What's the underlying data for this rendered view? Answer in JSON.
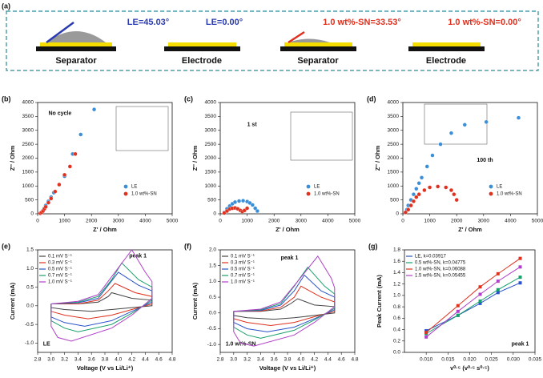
{
  "diagram": {
    "label": "(a)",
    "items": [
      {
        "angle": "LE=45.03°",
        "caption": "Separator"
      },
      {
        "angle": "LE=0.00°",
        "caption": "Electrode"
      },
      {
        "angle": "1.0 wt%-SN=33.53°",
        "caption": "Separator"
      },
      {
        "angle": "1.0 wt%-SN=0.00°",
        "caption": "Electrode"
      }
    ]
  },
  "chart_data": [
    {
      "type": "scatter",
      "label": "(b)",
      "annotations": [
        "No cycle"
      ],
      "xlabel": "Z' / Ohm",
      "ylabel": "Z'' / Ohm",
      "xlim": [
        0,
        5000
      ],
      "ylim": [
        0,
        4000
      ],
      "xticks": [
        0,
        1000,
        2000,
        3000,
        4000,
        5000
      ],
      "yticks": [
        0,
        500,
        1000,
        1500,
        2000,
        2500,
        3000,
        3500,
        4000
      ],
      "legend": "lower right",
      "series": [
        {
          "name": "LE",
          "color": "#3a8fd8",
          "x": [
            100,
            150,
            200,
            250,
            300,
            400,
            500,
            600,
            800,
            1000,
            1300,
            1600,
            2100
          ],
          "values": [
            20,
            60,
            120,
            200,
            300,
            450,
            600,
            760,
            1050,
            1350,
            2150,
            2850,
            3750
          ]
        },
        {
          "name": "1.0 wt%-SN",
          "color": "#e0301e",
          "x": [
            100,
            150,
            200,
            250,
            300,
            400,
            500,
            650,
            800,
            1000,
            1200,
            1400
          ],
          "values": [
            20,
            50,
            100,
            180,
            250,
            400,
            550,
            800,
            1050,
            1400,
            1700,
            2150
          ]
        }
      ]
    },
    {
      "type": "scatter",
      "label": "(c)",
      "annotations": [
        "1 st"
      ],
      "xlabel": "Z' / Ohm",
      "ylabel": "Z'' / Ohm",
      "xlim": [
        0,
        5000
      ],
      "ylim": [
        0,
        4000
      ],
      "xticks": [
        0,
        1000,
        2000,
        3000,
        4000,
        5000
      ],
      "yticks": [
        0,
        500,
        1000,
        1500,
        2000,
        2500,
        3000,
        3500,
        4000
      ],
      "legend": "lower right",
      "series": [
        {
          "name": "LE",
          "color": "#3a8fd8",
          "x": [
            150,
            250,
            350,
            450,
            550,
            700,
            850,
            1000,
            1100,
            1200,
            1300,
            1380
          ],
          "values": [
            50,
            180,
            280,
            360,
            420,
            460,
            470,
            440,
            390,
            320,
            200,
            100
          ]
        },
        {
          "name": "1.0 wt%-SN",
          "color": "#e0301e",
          "x": [
            150,
            250,
            350,
            450,
            550,
            650,
            750,
            820,
            900,
            1000
          ],
          "values": [
            30,
            100,
            170,
            200,
            210,
            180,
            120,
            80,
            120,
            200
          ]
        }
      ]
    },
    {
      "type": "scatter",
      "label": "(d)",
      "annotations": [
        "100 th"
      ],
      "xlabel": "Z' / Ohm",
      "ylabel": "Z'' / Ohm",
      "xlim": [
        0,
        5000
      ],
      "ylim": [
        0,
        4000
      ],
      "xticks": [
        0,
        1000,
        2000,
        3000,
        4000,
        5000
      ],
      "yticks": [
        0,
        500,
        1000,
        1500,
        2000,
        2500,
        3000,
        3500,
        4000
      ],
      "legend": "lower right",
      "series": [
        {
          "name": "LE",
          "color": "#3a8fd8",
          "x": [
            100,
            150,
            200,
            300,
            400,
            500,
            600,
            700,
            900,
            1100,
            1400,
            1800,
            2300,
            3100,
            4300
          ],
          "values": [
            50,
            150,
            300,
            500,
            700,
            900,
            1100,
            1300,
            1700,
            2100,
            2500,
            2900,
            3200,
            3300,
            3450
          ]
        },
        {
          "name": "1.0 wt%-SN",
          "color": "#e0301e",
          "x": [
            100,
            200,
            300,
            400,
            500,
            600,
            800,
            1000,
            1300,
            1600,
            1800,
            1900,
            2000
          ],
          "values": [
            50,
            150,
            300,
            450,
            600,
            700,
            850,
            950,
            980,
            950,
            850,
            700,
            500
          ]
        }
      ]
    },
    {
      "type": "line",
      "label": "(e)",
      "annotations": [
        "peak 1",
        "LE"
      ],
      "xlabel": "Voltage (V vs Li/Li⁺)",
      "ylabel": "Current (mA)",
      "xlim": [
        2.8,
        4.8
      ],
      "ylim": [
        -1.25,
        1.5
      ],
      "xticks": [
        2.8,
        {
          "value": 3,
          "label": "3.0"
        },
        3.2,
        3.4,
        3.6,
        3.8,
        {
          "value": 4,
          "label": "4.0"
        },
        4.2,
        4.4,
        4.6,
        4.8
      ],
      "yticks": [
        {
          "value": -1,
          "label": "-1.0"
        },
        -0.5,
        {
          "value": 0,
          "label": "0.0"
        },
        0.5,
        {
          "value": 1,
          "label": "1.0"
        },
        1.5
      ],
      "legend": "upper left",
      "series": [
        {
          "name": "0.1 mV S⁻¹",
          "color": "#444444",
          "x": [
            3.0,
            3.4,
            3.7,
            3.85,
            3.9,
            4.2,
            4.5,
            4.5,
            4.2,
            3.9,
            3.6,
            3.2,
            3.0,
            3.0
          ],
          "values": [
            0.05,
            0.05,
            0.1,
            0.25,
            0.35,
            0.2,
            0.15,
            0.0,
            -0.05,
            -0.1,
            -0.15,
            -0.1,
            -0.05,
            0.05
          ]
        },
        {
          "name": "0.3 mV S⁻¹",
          "color": "#e0301e",
          "x": [
            3.0,
            3.4,
            3.7,
            3.85,
            3.95,
            4.25,
            4.5,
            4.5,
            4.2,
            3.9,
            3.55,
            3.2,
            3.0,
            3.0
          ],
          "values": [
            0.05,
            0.05,
            0.15,
            0.4,
            0.6,
            0.35,
            0.25,
            0.05,
            -0.1,
            -0.25,
            -0.35,
            -0.25,
            -0.15,
            0.05
          ]
        },
        {
          "name": "0.5 mV S⁻¹",
          "color": "#2a52c9",
          "x": [
            3.0,
            3.4,
            3.7,
            3.85,
            4.0,
            4.3,
            4.5,
            4.5,
            4.2,
            3.9,
            3.5,
            3.2,
            3.0,
            3.0
          ],
          "values": [
            0.05,
            0.08,
            0.2,
            0.55,
            0.9,
            0.55,
            0.4,
            0.1,
            -0.15,
            -0.4,
            -0.55,
            -0.45,
            -0.3,
            0.05
          ]
        },
        {
          "name": "0.7 mV S⁻¹",
          "color": "#17a06a",
          "x": [
            3.0,
            3.4,
            3.7,
            3.9,
            4.05,
            4.3,
            4.5,
            4.5,
            4.2,
            3.9,
            3.4,
            3.2,
            3.0,
            3.0
          ],
          "values": [
            0.05,
            0.1,
            0.25,
            0.7,
            1.15,
            0.7,
            0.5,
            0.15,
            -0.2,
            -0.5,
            -0.7,
            -0.6,
            -0.4,
            0.05
          ]
        },
        {
          "name": "1.0 mV S⁻¹",
          "color": "#b040c8",
          "x": [
            3.0,
            3.4,
            3.7,
            3.95,
            4.2,
            4.4,
            4.5,
            4.5,
            4.2,
            3.9,
            3.3,
            3.1,
            3.0,
            3.0
          ],
          "values": [
            0.05,
            0.12,
            0.3,
            0.9,
            1.5,
            0.9,
            0.65,
            0.2,
            -0.25,
            -0.6,
            -0.95,
            -0.85,
            -0.55,
            0.05
          ]
        }
      ]
    },
    {
      "type": "line",
      "label": "(f)",
      "annotations": [
        "peak 1",
        "1.0 wt%-SN"
      ],
      "xlabel": "Voltage (V vs Li/Li⁺)",
      "ylabel": "Current (mA)",
      "xlim": [
        2.8,
        4.8
      ],
      "ylim": [
        -1.25,
        2
      ],
      "xticks": [
        2.8,
        {
          "value": 3,
          "label": "3.0"
        },
        3.2,
        3.4,
        3.6,
        3.8,
        {
          "value": 4,
          "label": "4.0"
        },
        4.2,
        4.4,
        4.6,
        4.8
      ],
      "yticks": [
        {
          "value": -1,
          "label": "-1.0"
        },
        -0.5,
        {
          "value": 0,
          "label": "0.0"
        },
        0.5,
        {
          "value": 1,
          "label": "1.0"
        },
        1.5,
        {
          "value": 2,
          "label": "2.0"
        }
      ],
      "legend": "upper left",
      "series": [
        {
          "name": "0.1 mV S⁻¹",
          "color": "#444444",
          "x": [
            3.0,
            3.4,
            3.7,
            3.85,
            3.95,
            4.2,
            4.5,
            4.5,
            4.2,
            3.9,
            3.6,
            3.2,
            3.0,
            3.0
          ],
          "values": [
            0.05,
            0.05,
            0.12,
            0.3,
            0.45,
            0.25,
            0.2,
            0.0,
            -0.08,
            -0.15,
            -0.2,
            -0.15,
            -0.08,
            0.05
          ]
        },
        {
          "name": "0.3 mV S⁻¹",
          "color": "#e0301e",
          "x": [
            3.0,
            3.4,
            3.7,
            3.9,
            4.0,
            4.3,
            4.5,
            4.5,
            4.2,
            3.9,
            3.55,
            3.2,
            3.0,
            3.0
          ],
          "values": [
            0.05,
            0.06,
            0.18,
            0.5,
            0.85,
            0.5,
            0.35,
            0.05,
            -0.12,
            -0.3,
            -0.4,
            -0.3,
            -0.18,
            0.05
          ]
        },
        {
          "name": "0.5 mV S⁻¹",
          "color": "#2a52c9",
          "x": [
            3.0,
            3.4,
            3.7,
            3.9,
            4.05,
            4.3,
            4.5,
            4.5,
            4.2,
            3.9,
            3.5,
            3.2,
            3.0,
            3.0
          ],
          "values": [
            0.05,
            0.08,
            0.25,
            0.7,
            1.2,
            0.7,
            0.5,
            0.1,
            -0.18,
            -0.45,
            -0.6,
            -0.5,
            -0.3,
            0.05
          ]
        },
        {
          "name": "0.7 mV S⁻¹",
          "color": "#17a06a",
          "x": [
            3.0,
            3.4,
            3.7,
            3.9,
            4.1,
            4.35,
            4.5,
            4.5,
            4.2,
            3.9,
            3.4,
            3.2,
            3.0,
            3.0
          ],
          "values": [
            0.05,
            0.1,
            0.3,
            0.85,
            1.45,
            0.85,
            0.6,
            0.15,
            -0.22,
            -0.55,
            -0.8,
            -0.7,
            -0.45,
            0.05
          ]
        },
        {
          "name": "1.0 mV S⁻¹",
          "color": "#b040c8",
          "x": [
            3.0,
            3.4,
            3.7,
            3.95,
            4.25,
            4.45,
            4.5,
            4.5,
            4.2,
            3.9,
            3.3,
            3.1,
            3.0,
            3.0
          ],
          "values": [
            0.05,
            0.12,
            0.35,
            1.0,
            1.8,
            1.1,
            0.8,
            0.2,
            -0.3,
            -0.7,
            -1.05,
            -0.95,
            -0.6,
            0.05
          ]
        }
      ]
    },
    {
      "type": "line",
      "markers": true,
      "label": "(g)",
      "annotations": [
        "peak 1"
      ],
      "xlabel": "v⁰·⁵ (v⁰·⁵ s⁰·⁵)",
      "ylabel": "Peak Current (mA)",
      "xlim": [
        0.005,
        0.035
      ],
      "ylim": [
        0,
        1.8
      ],
      "xticks": [
        {
          "value": 0.01,
          "label": "0.010"
        },
        0.015,
        {
          "value": 0.02,
          "label": "0.020"
        },
        0.025,
        {
          "value": 0.03,
          "label": "0.030"
        },
        0.035
      ],
      "yticks": [
        {
          "value": 0,
          "label": "0.0"
        },
        0.2,
        0.4,
        0.6,
        0.8,
        {
          "value": 1,
          "label": "1.0"
        },
        1.2,
        1.4,
        1.6,
        1.8
      ],
      "legend": "upper left",
      "x": [
        0.01,
        0.0173,
        0.0224,
        0.0265,
        0.0316
      ],
      "series": [
        {
          "name": "LE, k=0.03917",
          "color": "#2a52c9",
          "values": [
            0.38,
            0.65,
            0.86,
            1.05,
            1.22
          ]
        },
        {
          "name": "0.5 wt%-SN, k=0.04775",
          "color": "#17a06a",
          "values": [
            0.33,
            0.65,
            0.9,
            1.1,
            1.32
          ]
        },
        {
          "name": "1.0 wt%-SN, k=0.06088",
          "color": "#e0301e",
          "values": [
            0.35,
            0.82,
            1.15,
            1.38,
            1.65
          ]
        },
        {
          "name": "1.5 wt%-SN, k=0.05455",
          "color": "#b040c8",
          "values": [
            0.27,
            0.72,
            1.02,
            1.25,
            1.5
          ]
        }
      ]
    }
  ]
}
